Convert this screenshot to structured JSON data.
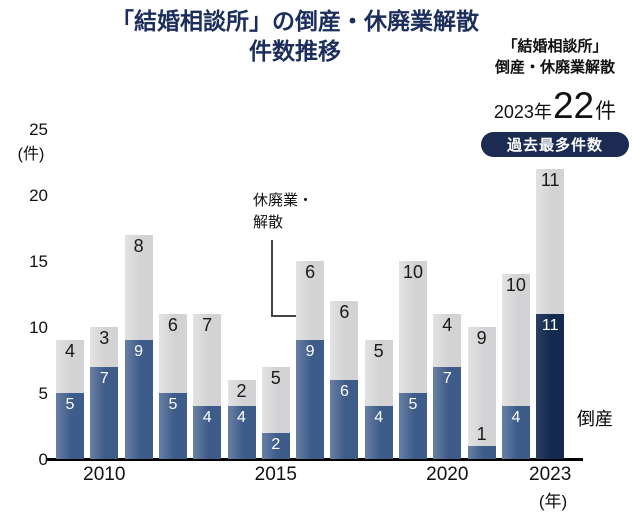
{
  "title": {
    "line1": "「結婚相談所」の倒産・休廃業解散",
    "line2": "件数推移"
  },
  "highlight_panel": {
    "line1": "「結婚相談所」",
    "line2": "倒産・休廃業解散",
    "stat_year": "2023年",
    "stat_count": "22",
    "stat_unit": "件",
    "badge": "過去最多件数"
  },
  "annotations": {
    "closure_label_line1": "休廃業・",
    "closure_label_line2": "解散",
    "bankruptcy_label": "倒産"
  },
  "axis": {
    "y_unit": "(件)",
    "y_ticks": [
      "25",
      "20",
      "15",
      "10",
      "5",
      "0"
    ],
    "x_unit": "(年)",
    "x_ticks": [
      {
        "label": "2010",
        "bar_index": 1
      },
      {
        "label": "2015",
        "bar_index": 6
      },
      {
        "label": "2020",
        "bar_index": 11
      },
      {
        "label": "2023",
        "bar_index": 14
      }
    ]
  },
  "colors": {
    "bankruptcy": "#3e5c8a",
    "bankruptcy_2023": "#13294f",
    "closure": "#d3d3d5",
    "title_text": "#1c2e5c",
    "badge_bg": "#1b2b52",
    "badge_text": "#ffffff",
    "axis_line": "#000000"
  },
  "chart_data": {
    "type": "bar",
    "stacked": true,
    "title": "「結婚相談所」の倒産・休廃業解散件数推移",
    "x": [
      2009,
      2010,
      2011,
      2012,
      2013,
      2014,
      2015,
      2016,
      2017,
      2018,
      2019,
      2020,
      2021,
      2022,
      2023
    ],
    "series": [
      {
        "name": "倒産",
        "values": [
          5,
          7,
          9,
          5,
          4,
          4,
          2,
          9,
          6,
          4,
          5,
          7,
          1,
          4,
          11
        ]
      },
      {
        "name": "休廃業・解散",
        "values": [
          4,
          3,
          8,
          6,
          7,
          2,
          5,
          6,
          6,
          5,
          10,
          4,
          9,
          10,
          11
        ]
      }
    ],
    "totals": [
      9,
      10,
      17,
      11,
      11,
      6,
      7,
      15,
      12,
      9,
      15,
      11,
      10,
      14,
      22
    ],
    "xlabel": "年",
    "ylabel": "件",
    "ylim": [
      0,
      25
    ],
    "grid": false,
    "legend_position": "inline-annotations",
    "highlight_year": 2023,
    "highlight_total": 22
  }
}
